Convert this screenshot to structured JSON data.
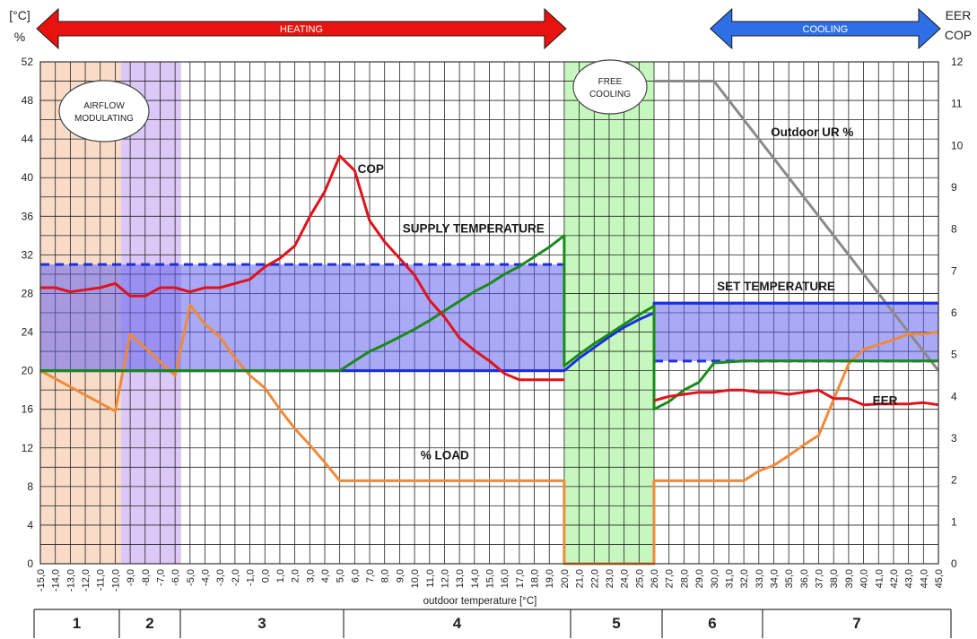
{
  "chart_data": {
    "type": "line",
    "xlabel": "outdoor temperature [°C]",
    "y_left_label_line1": "[°C]",
    "y_left_label_line2": "%",
    "y_right_label_line1": "EER",
    "y_right_label_line2": "COP",
    "x_range": [
      -15,
      45
    ],
    "y_left_range": [
      0,
      52
    ],
    "y_right_range": [
      0,
      12
    ],
    "grid": true,
    "x_ticks": [
      "-15,0",
      "-14,0",
      "-13,0",
      "-12,0",
      "-11,0",
      "-10,0",
      "-9,0",
      "-8,0",
      "-7,0",
      "-6,0",
      "-5,0",
      "-4,0",
      "-3,0",
      "-2,0",
      "-1,0",
      "0,0",
      "1,0",
      "2,0",
      "3,0",
      "4,0",
      "5,0",
      "6,0",
      "7,0",
      "8,0",
      "9,0",
      "10,0",
      "11,0",
      "12,0",
      "13,0",
      "14,0",
      "15,0",
      "16,0",
      "17,0",
      "18,0",
      "19,0",
      "20,0",
      "21,0",
      "22,0",
      "23,0",
      "24,0",
      "25,0",
      "26,0",
      "27,0",
      "28,0",
      "29,0",
      "30,0",
      "31,0",
      "32,0",
      "33,0",
      "34,0",
      "35,0",
      "36,0",
      "37,0",
      "38,0",
      "39,0",
      "40,0",
      "41,0",
      "42,0",
      "43,0",
      "44,0",
      "45,0"
    ],
    "y_left_ticks": [
      "0",
      "4",
      "8",
      "12",
      "16",
      "20",
      "24",
      "28",
      "32",
      "36",
      "40",
      "44",
      "48",
      "52"
    ],
    "y_right_ticks": [
      "0",
      "1",
      "2",
      "3",
      "4",
      "5",
      "6",
      "7",
      "8",
      "9",
      "10",
      "11",
      "12"
    ],
    "arrows": [
      {
        "label": "HEATING",
        "x_range": [
          -15,
          20
        ],
        "color": "#e8130f"
      },
      {
        "label": "COOLING",
        "x_range": [
          30,
          45
        ],
        "color": "#2e6ee6"
      }
    ],
    "bands": [
      {
        "x_range": [
          -15,
          -9.6
        ],
        "color": "#f9dcc8"
      },
      {
        "x_range": [
          -9.6,
          -5.6
        ],
        "color": "#dcc8f7"
      },
      {
        "x_range": [
          20,
          26
        ],
        "color": "#c6f7be"
      }
    ],
    "bubbles": [
      {
        "text_line1": "AIRFLOW",
        "text_line2": "MODULATING"
      },
      {
        "text_line1": "FREE",
        "text_line2": "COOLING"
      }
    ],
    "zones": [
      {
        "label": "1",
        "x_range": [
          -15,
          -9.8
        ]
      },
      {
        "label": "2",
        "x_range": [
          -9.8,
          -5.8
        ]
      },
      {
        "label": "3",
        "x_range": [
          -5.8,
          5
        ]
      },
      {
        "label": "4",
        "x_range": [
          5,
          20.5
        ]
      },
      {
        "label": "5",
        "x_range": [
          20.5,
          26.7
        ]
      },
      {
        "label": "6",
        "x_range": [
          26.7,
          33.5
        ]
      },
      {
        "label": "7",
        "x_range": [
          33.5,
          45
        ]
      }
    ],
    "set_temperature_boxes": [
      {
        "x_range": [
          -15,
          20
        ],
        "y_range": [
          20,
          31
        ],
        "color": "#6262ee"
      },
      {
        "x_range": [
          26,
          45
        ],
        "y_range": [
          21,
          27
        ],
        "color": "#6262ee"
      }
    ],
    "series": [
      {
        "name": "COP",
        "axis": "right",
        "color": "#e0121c",
        "x": [
          -15,
          -14,
          -13,
          -12,
          -11,
          -10,
          -9,
          -8,
          -7,
          -6,
          -5,
          -4,
          -3,
          -2,
          -1,
          0,
          1,
          2,
          3,
          4,
          5,
          6,
          7,
          8,
          9,
          10,
          11,
          12,
          13,
          14,
          15,
          16,
          17,
          18,
          19,
          20
        ],
        "y": [
          6.6,
          6.6,
          6.5,
          6.55,
          6.6,
          6.7,
          6.4,
          6.4,
          6.6,
          6.6,
          6.5,
          6.6,
          6.6,
          6.7,
          6.8,
          7.1,
          7.3,
          7.6,
          8.3,
          8.9,
          9.75,
          9.4,
          8.2,
          7.7,
          7.3,
          6.9,
          6.3,
          5.9,
          5.4,
          5.1,
          4.85,
          4.55,
          4.4,
          4.4,
          4.4,
          4.4
        ]
      },
      {
        "name": "SUPPLY TEMPERATURE",
        "axis": "left",
        "color": "#1a8a1a",
        "x": [
          -15,
          -10,
          -5,
          0,
          5,
          6,
          7,
          8,
          9,
          10,
          11,
          12,
          13,
          14,
          15,
          16,
          17,
          18,
          19,
          20,
          20,
          21,
          22,
          23,
          24,
          25,
          26,
          26,
          27,
          28,
          29,
          30,
          31,
          32,
          33,
          34,
          35,
          36,
          37,
          38,
          39,
          40,
          41,
          42,
          43,
          44,
          45
        ],
        "y": [
          20,
          20,
          20,
          20,
          20,
          21,
          22,
          22.7,
          23.5,
          24.3,
          25.2,
          26.2,
          27.2,
          28.2,
          29,
          30,
          30.8,
          31.8,
          32.8,
          34,
          20.5,
          21.7,
          22.8,
          23.8,
          24.8,
          25.8,
          26.7,
          16,
          16.8,
          18,
          18.8,
          20.8,
          20.9,
          21,
          21,
          21,
          21,
          21,
          21,
          21,
          21,
          21,
          21,
          21,
          21,
          21,
          21
        ]
      },
      {
        "name": "SET TEMPERATURE",
        "axis": "left",
        "color": "#1e2ee0",
        "x": [
          -15,
          0,
          5,
          10,
          15,
          20,
          20,
          21,
          22,
          23,
          24,
          25,
          26,
          26,
          30,
          35,
          40,
          45
        ],
        "y": [
          20,
          20,
          20,
          20,
          20,
          20,
          20,
          21.3,
          22.4,
          23.5,
          24.5,
          25.3,
          26,
          27,
          27,
          27,
          27,
          27
        ]
      },
      {
        "name": "% LOAD",
        "axis": "left",
        "color": "#f08a3a",
        "x": [
          -15,
          -10,
          -9,
          -6,
          -5,
          -4,
          -3,
          -2,
          -1,
          0,
          1,
          2,
          3,
          4,
          5,
          10,
          15,
          20,
          20,
          26,
          26,
          30,
          31,
          32,
          33,
          34,
          35,
          36,
          37,
          38,
          39,
          40,
          41,
          42,
          43,
          44,
          45
        ],
        "y": [
          20,
          15.8,
          23.8,
          19.5,
          26.8,
          24.8,
          23.5,
          21.3,
          19.5,
          18.2,
          16,
          14,
          12.3,
          10.5,
          8.6,
          8.6,
          8.6,
          8.6,
          0,
          0,
          8.6,
          8.6,
          8.6,
          8.6,
          9.6,
          10.2,
          11.2,
          12.3,
          13.3,
          17,
          20.7,
          22.2,
          22.7,
          23.2,
          23.8,
          23.8,
          24
        ]
      },
      {
        "name": "EER",
        "axis": "right",
        "color": "#e0121c",
        "x": [
          26,
          27,
          28,
          29,
          30,
          31,
          32,
          33,
          34,
          35,
          36,
          37,
          38,
          39,
          40,
          41,
          42,
          43,
          44,
          45
        ],
        "y": [
          3.9,
          4.0,
          4.05,
          4.1,
          4.1,
          4.15,
          4.15,
          4.1,
          4.1,
          4.05,
          4.1,
          4.15,
          3.95,
          3.95,
          3.8,
          3.82,
          3.82,
          3.82,
          3.85,
          3.8
        ]
      },
      {
        "name": "Outdoor UR %",
        "axis": "left",
        "color": "#8a8a8a",
        "x": [
          26,
          30,
          45
        ],
        "y": [
          50,
          50,
          20
        ]
      }
    ],
    "annotations": [
      {
        "text": "COP",
        "x": 6.2,
        "y": 40.5
      },
      {
        "text": "SUPPLY TEMPERATURE",
        "x": 9.2,
        "y": 34.3
      },
      {
        "text": "SET TEMPERATURE",
        "x": 30.2,
        "y": 28.3
      },
      {
        "text": "% LOAD",
        "x": 10.4,
        "y": 10.8
      },
      {
        "text": "EER",
        "x": 40.6,
        "y": 16.5
      },
      {
        "text": "Outdoor UR %",
        "x": 33.8,
        "y": 44.3
      }
    ]
  }
}
